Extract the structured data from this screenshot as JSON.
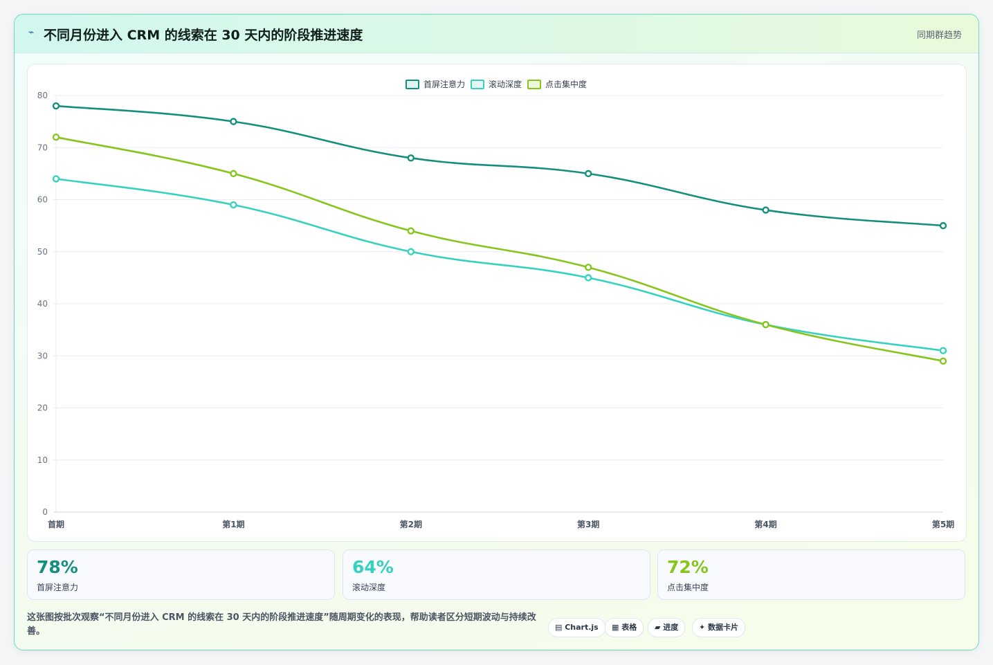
{
  "header": {
    "title": "不同月份进入 CRM 的线索在 30 天内的阶段推进速度",
    "tag": "同期群趋势"
  },
  "chart_data": {
    "type": "line",
    "categories": [
      "首期",
      "第1期",
      "第2期",
      "第3期",
      "第4期",
      "第5期"
    ],
    "series": [
      {
        "name": "首屏注意力",
        "values": [
          78,
          75,
          68,
          65,
          58,
          55
        ],
        "color": "#138f7c"
      },
      {
        "name": "滚动深度",
        "values": [
          64,
          59,
          50,
          45,
          36,
          31
        ],
        "color": "#36d1bf"
      },
      {
        "name": "点击集中度",
        "values": [
          72,
          65,
          54,
          47,
          36,
          29
        ],
        "color": "#86c51c"
      }
    ],
    "y_ticks": [
      0,
      10,
      20,
      30,
      40,
      50,
      60,
      70,
      80
    ],
    "ylim": [
      0,
      80
    ],
    "grid": true,
    "legend": "top-center"
  },
  "stats": [
    {
      "value": "78%",
      "label": "首屏注意力",
      "color": "#138f7c"
    },
    {
      "value": "64%",
      "label": "滚动深度",
      "color": "#36d1bf"
    },
    {
      "value": "72%",
      "label": "点击集中度",
      "color": "#86c51c"
    }
  ],
  "footer": {
    "description": "这张图按批次观察“不同月份进入 CRM 的线索在 30 天内的阶段推进速度”随周期变化的表现，帮助读者区分短期波动与持续改善。",
    "chips": [
      "▤ Chart.js",
      "▦ 表格",
      "▰ 进度",
      "✦ 数据卡片"
    ]
  }
}
